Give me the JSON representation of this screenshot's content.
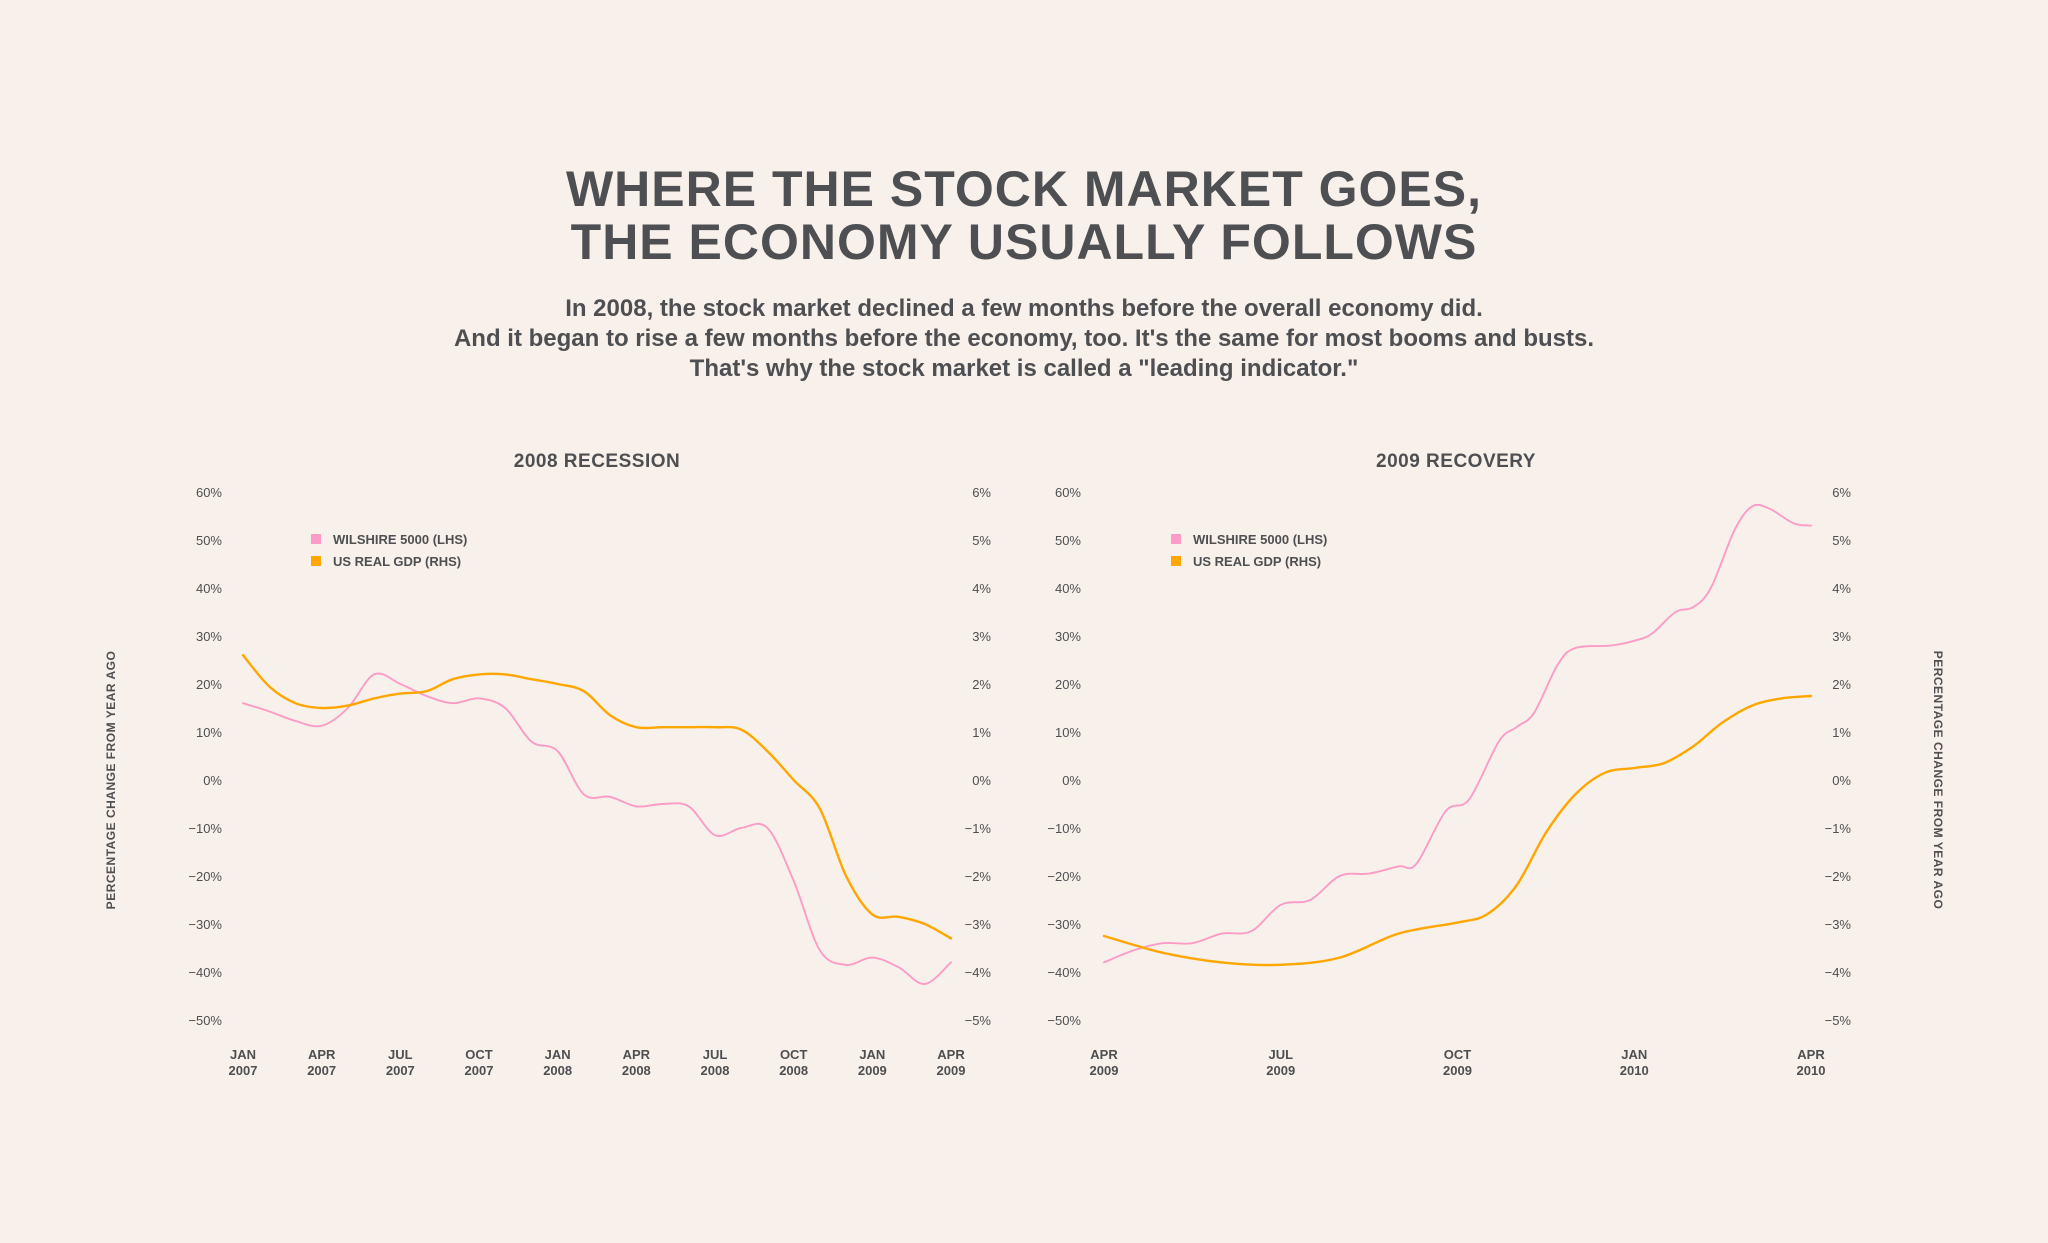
{
  "header": {
    "title_lines": [
      "WHERE THE STOCK MARKET GOES,",
      "THE ECONOMY USUALLY FOLLOWS"
    ],
    "subtitle_lines": [
      "In 2008, the stock market declined a few months before the overall economy did.",
      "And it began to rise a few months before the economy, too. It's the same for most booms and busts.",
      "That's why the stock market is called a \"leading indicator.\""
    ]
  },
  "colors": {
    "wilshire": "#fb9cc8",
    "gdp": "#ffa600",
    "text": "#4d4f52",
    "background": "#f8f0ea"
  },
  "y_axis_label": "PERCENTAGE CHANGE FROM YEAR AGO",
  "chart_data": [
    {
      "type": "line",
      "title": "2008 RECESSION",
      "legend": [
        "WILSHIRE 5000 (LHS)",
        "US REAL GDP (RHS)"
      ],
      "legend_placement": "top-left",
      "x_unit": "months since Jan 2007",
      "x_range": [
        0,
        27
      ],
      "x_ticks": [
        [
          0,
          "JAN",
          "2007"
        ],
        [
          3,
          "APR",
          "2007"
        ],
        [
          6,
          "JUL",
          "2007"
        ],
        [
          9,
          "OCT",
          "2007"
        ],
        [
          12,
          "JAN",
          "2008"
        ],
        [
          15,
          "APR",
          "2008"
        ],
        [
          18,
          "JUL",
          "2008"
        ],
        [
          21,
          "OCT",
          "2008"
        ],
        [
          24,
          "JAN",
          "2009"
        ],
        [
          27,
          "APR",
          "2009"
        ]
      ],
      "ylim_left": [
        -50,
        60
      ],
      "ylim_right": [
        -5,
        6
      ],
      "y_ticks_left": [
        "60%",
        "50%",
        "40%",
        "30%",
        "20%",
        "10%",
        "0%",
        "−10%",
        "−20%",
        "−30%",
        "−40%",
        "−50%"
      ],
      "y_ticks_right": [
        "6%",
        "5%",
        "4%",
        "3%",
        "2%",
        "1%",
        "0%",
        "−1%",
        "−2%",
        "−3%",
        "−4%",
        "−5%"
      ],
      "series": [
        {
          "name": "WILSHIRE 5000 (LHS)",
          "axis": "left",
          "x": [
            0,
            1,
            2,
            3,
            4,
            5,
            6,
            7,
            8,
            9,
            10,
            11,
            12,
            13,
            14,
            15,
            16,
            17,
            18,
            19,
            20,
            21,
            22,
            23,
            24,
            25,
            26,
            27
          ],
          "y": [
            16,
            14.3,
            12.3,
            11.3,
            15,
            22,
            20,
            17.5,
            16,
            17,
            15,
            8,
            6,
            -3,
            -3.5,
            -5.5,
            -5,
            -5.5,
            -11.5,
            -10,
            -10,
            -21,
            -35.5,
            -38.5,
            -37,
            -39,
            -42.5,
            -38
          ]
        },
        {
          "name": "US REAL GDP (RHS)",
          "axis": "right",
          "x": [
            0,
            1,
            2,
            3,
            4,
            5,
            6,
            7,
            8,
            9,
            10,
            11,
            12,
            13,
            14,
            15,
            16,
            17,
            18,
            19,
            20,
            21,
            22,
            23,
            24,
            25,
            26,
            27
          ],
          "y": [
            2.6,
            1.95,
            1.6,
            1.5,
            1.55,
            1.7,
            1.8,
            1.85,
            2.1,
            2.2,
            2.2,
            2.1,
            2.0,
            1.85,
            1.35,
            1.1,
            1.1,
            1.1,
            1.1,
            1.05,
            0.6,
            0.0,
            -0.6,
            -2.0,
            -2.8,
            -2.85,
            -3.0,
            -3.3
          ]
        }
      ]
    },
    {
      "type": "line",
      "title": "2009 RECOVERY",
      "legend": [
        "WILSHIRE 5000 (LHS)",
        "US REAL GDP (RHS)"
      ],
      "legend_placement": "top-left",
      "x_unit": "months since Apr 2009",
      "x_range": [
        0,
        12
      ],
      "x_ticks": [
        [
          0,
          "APR",
          "2009"
        ],
        [
          3,
          "JUL",
          "2009"
        ],
        [
          6,
          "OCT",
          "2009"
        ],
        [
          9,
          "JAN",
          "2010"
        ],
        [
          12,
          "APR",
          "2010"
        ]
      ],
      "ylim_left": [
        -50,
        60
      ],
      "ylim_right": [
        -5,
        6
      ],
      "y_ticks_left": [
        "60%",
        "50%",
        "40%",
        "30%",
        "20%",
        "10%",
        "0%",
        "−10%",
        "−20%",
        "−30%",
        "−40%",
        "−50%"
      ],
      "y_ticks_right": [
        "6%",
        "5%",
        "4%",
        "3%",
        "2%",
        "1%",
        "0%",
        "−1%",
        "−2%",
        "−3%",
        "−4%",
        "−5%"
      ],
      "series": [
        {
          "name": "WILSHIRE 5000 (LHS)",
          "axis": "left",
          "x": [
            0,
            0.5,
            1,
            1.5,
            2,
            2.5,
            3,
            3.5,
            4,
            4.5,
            5,
            5.3,
            5.8,
            6.2,
            6.7,
            7,
            7.3,
            7.7,
            8,
            8.6,
            9,
            9.3,
            9.7,
            10,
            10.3,
            10.7,
            11,
            11.3,
            11.7,
            12
          ],
          "y": [
            -38,
            -35.5,
            -34,
            -34,
            -32,
            -31.5,
            -26,
            -25,
            -20,
            -19.5,
            -18,
            -17.5,
            -6.5,
            -4,
            8,
            11,
            14,
            24,
            27.5,
            28,
            29,
            30.5,
            35,
            36,
            40,
            52,
            57,
            56.5,
            53.5,
            53
          ]
        },
        {
          "name": "US REAL GDP (RHS)",
          "axis": "right",
          "x": [
            0,
            1,
            2,
            3,
            4,
            5,
            6,
            6.5,
            7,
            7.5,
            8,
            8.5,
            9,
            9.5,
            10,
            10.5,
            11,
            11.5,
            12
          ],
          "y": [
            -3.25,
            -3.6,
            -3.8,
            -3.85,
            -3.7,
            -3.2,
            -2.97,
            -2.8,
            -2.2,
            -1.1,
            -0.3,
            0.15,
            0.25,
            0.35,
            0.7,
            1.2,
            1.55,
            1.7,
            1.75
          ]
        }
      ]
    }
  ]
}
